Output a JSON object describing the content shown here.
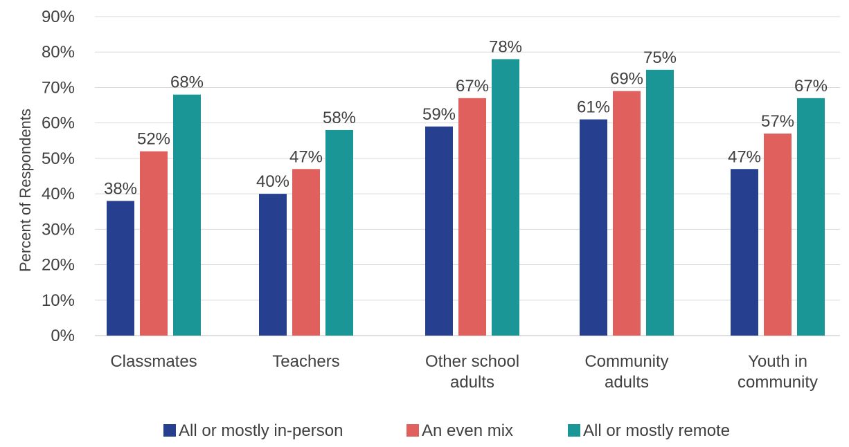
{
  "chart_data": {
    "type": "bar",
    "title": "",
    "xlabel": "",
    "ylabel": "Percent of Respondents",
    "ylim": [
      0,
      90
    ],
    "y_ticks": [
      "0%",
      "10%",
      "20%",
      "30%",
      "40%",
      "50%",
      "60%",
      "70%",
      "80%",
      "90%"
    ],
    "y_tick_values": [
      0,
      10,
      20,
      30,
      40,
      50,
      60,
      70,
      80,
      90
    ],
    "grid": true,
    "legend_position": "bottom",
    "categories": [
      [
        "Classmates"
      ],
      [
        "Teachers"
      ],
      [
        "Other school",
        "adults"
      ],
      [
        "Community",
        "adults"
      ],
      [
        "Youth in",
        "community"
      ]
    ],
    "series": [
      {
        "name": "All or mostly in-person",
        "color": "#273f8f",
        "values": [
          38,
          40,
          59,
          61,
          47
        ],
        "labels": [
          "38%",
          "40%",
          "59%",
          "61%",
          "47%"
        ]
      },
      {
        "name": "An even mix",
        "color": "#e0605e",
        "values": [
          52,
          47,
          67,
          69,
          57
        ],
        "labels": [
          "52%",
          "47%",
          "67%",
          "69%",
          "57%"
        ]
      },
      {
        "name": "All or mostly remote",
        "color": "#1b9696",
        "values": [
          68,
          58,
          78,
          75,
          67
        ],
        "labels": [
          "68%",
          "58%",
          "78%",
          "75%",
          "67%"
        ]
      }
    ]
  }
}
